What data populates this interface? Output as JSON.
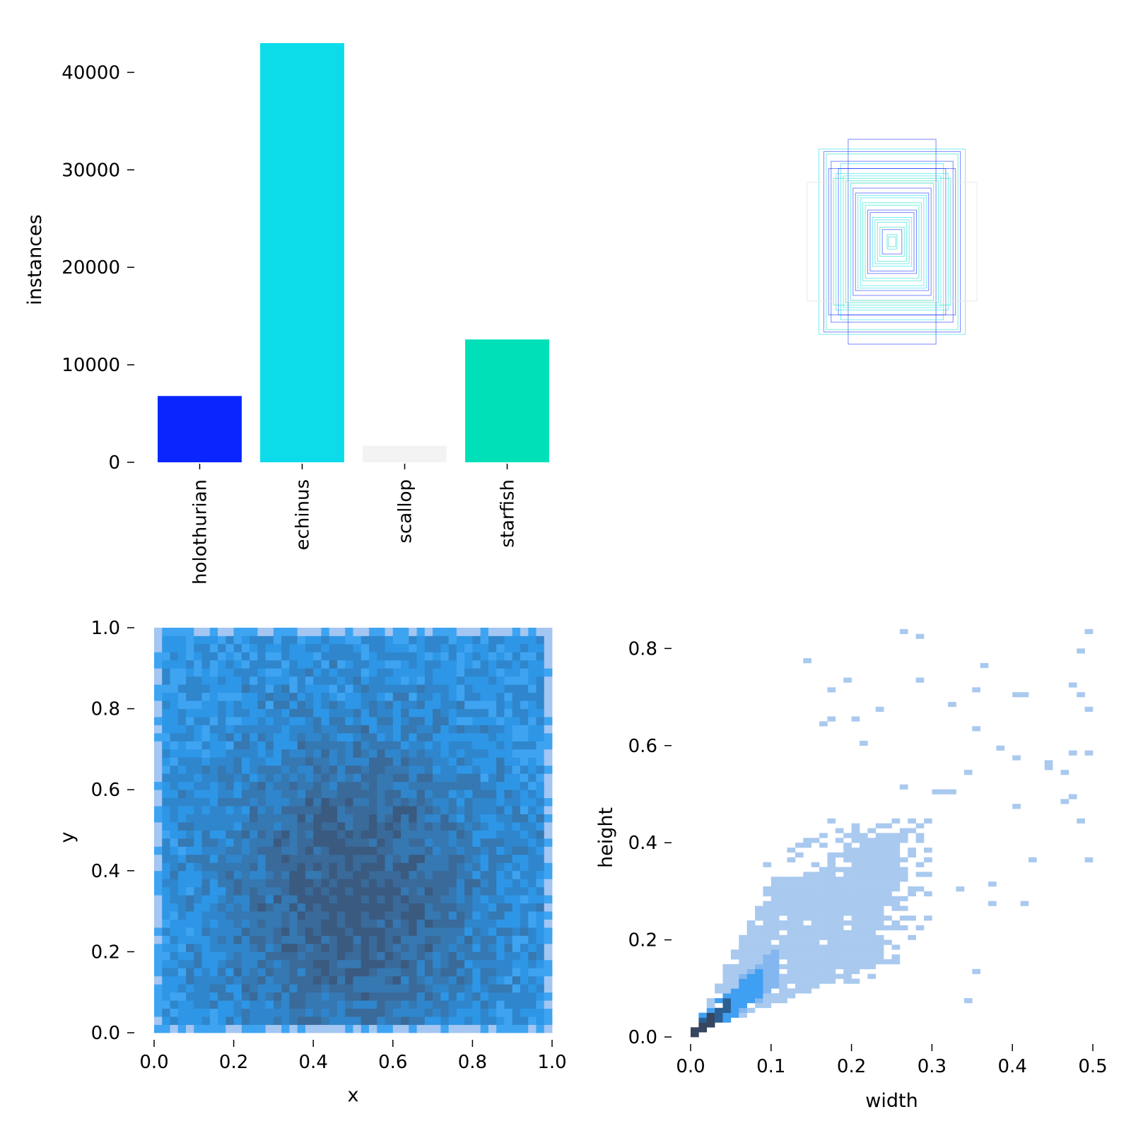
{
  "chart_data": [
    {
      "panel": "top-left",
      "type": "bar",
      "xlabel": "",
      "ylabel": "instances",
      "categories": [
        "holothurian",
        "echinus",
        "scallop",
        "starfish"
      ],
      "values": [
        6800,
        43000,
        1700,
        12600
      ],
      "colors": [
        "#0926ff",
        "#0cdcea",
        "#f3f3f3",
        "#00e0b8"
      ],
      "ylim": [
        0,
        43000
      ],
      "yticks": [
        0,
        10000,
        20000,
        30000,
        40000
      ],
      "ytick_labels": [
        "0",
        "10000",
        "20000",
        "30000",
        "40000"
      ],
      "grid": false
    },
    {
      "panel": "top-right",
      "type": "box-overlay",
      "description_colors": [
        "#0926ff",
        "#0cdcea",
        "#00e0b8"
      ],
      "boxes_w_h": [
        [
          0.18,
          0.42
        ],
        [
          0.3,
          0.38
        ],
        [
          0.27,
          0.36
        ],
        [
          0.22,
          0.3
        ],
        [
          0.2,
          0.27
        ],
        [
          0.17,
          0.24
        ],
        [
          0.15,
          0.2
        ],
        [
          0.13,
          0.18
        ],
        [
          0.11,
          0.15
        ],
        [
          0.09,
          0.12
        ],
        [
          0.08,
          0.1
        ],
        [
          0.06,
          0.08
        ],
        [
          0.04,
          0.05
        ],
        [
          0.02,
          0.03
        ],
        [
          0.015,
          0.02
        ],
        [
          0.25,
          0.33
        ],
        [
          0.23,
          0.28
        ],
        [
          0.19,
          0.25
        ],
        [
          0.16,
          0.22
        ],
        [
          0.14,
          0.19
        ],
        [
          0.12,
          0.16
        ],
        [
          0.1,
          0.13
        ],
        [
          0.07,
          0.09
        ],
        [
          0.05,
          0.06
        ],
        [
          0.28,
          0.37
        ],
        [
          0.21,
          0.32
        ],
        [
          0.24,
          0.26
        ],
        [
          0.26,
          0.3
        ]
      ]
    },
    {
      "panel": "bottom-left",
      "type": "heatmap",
      "xlabel": "x",
      "ylabel": "y",
      "xlim": [
        0.0,
        1.0
      ],
      "ylim": [
        0.0,
        1.0
      ],
      "xticks": [
        0.0,
        0.2,
        0.4,
        0.6,
        0.8,
        1.0
      ],
      "xtick_labels": [
        "0.0",
        "0.2",
        "0.4",
        "0.6",
        "0.8",
        "1.0"
      ],
      "yticks": [
        0.0,
        0.2,
        0.4,
        0.6,
        0.8,
        1.0
      ],
      "ytick_labels": [
        "0.0",
        "0.2",
        "0.4",
        "0.6",
        "0.8",
        "1.0"
      ],
      "bins": 50,
      "peak": [
        0.5,
        0.35
      ]
    },
    {
      "panel": "bottom-right",
      "type": "heatmap",
      "xlabel": "width",
      "ylabel": "height",
      "xlim": [
        0.0,
        0.5
      ],
      "ylim": [
        0.0,
        0.85
      ],
      "xticks": [
        0.0,
        0.1,
        0.2,
        0.3,
        0.4,
        0.5
      ],
      "xtick_labels": [
        "0.0",
        "0.1",
        "0.2",
        "0.3",
        "0.4",
        "0.5"
      ],
      "yticks": [
        0.0,
        0.2,
        0.4,
        0.6,
        0.8
      ],
      "ytick_labels": [
        "0.0",
        "0.2",
        "0.4",
        "0.6",
        "0.8"
      ],
      "bin_width": 0.01,
      "peak": [
        0.03,
        0.05
      ]
    }
  ]
}
